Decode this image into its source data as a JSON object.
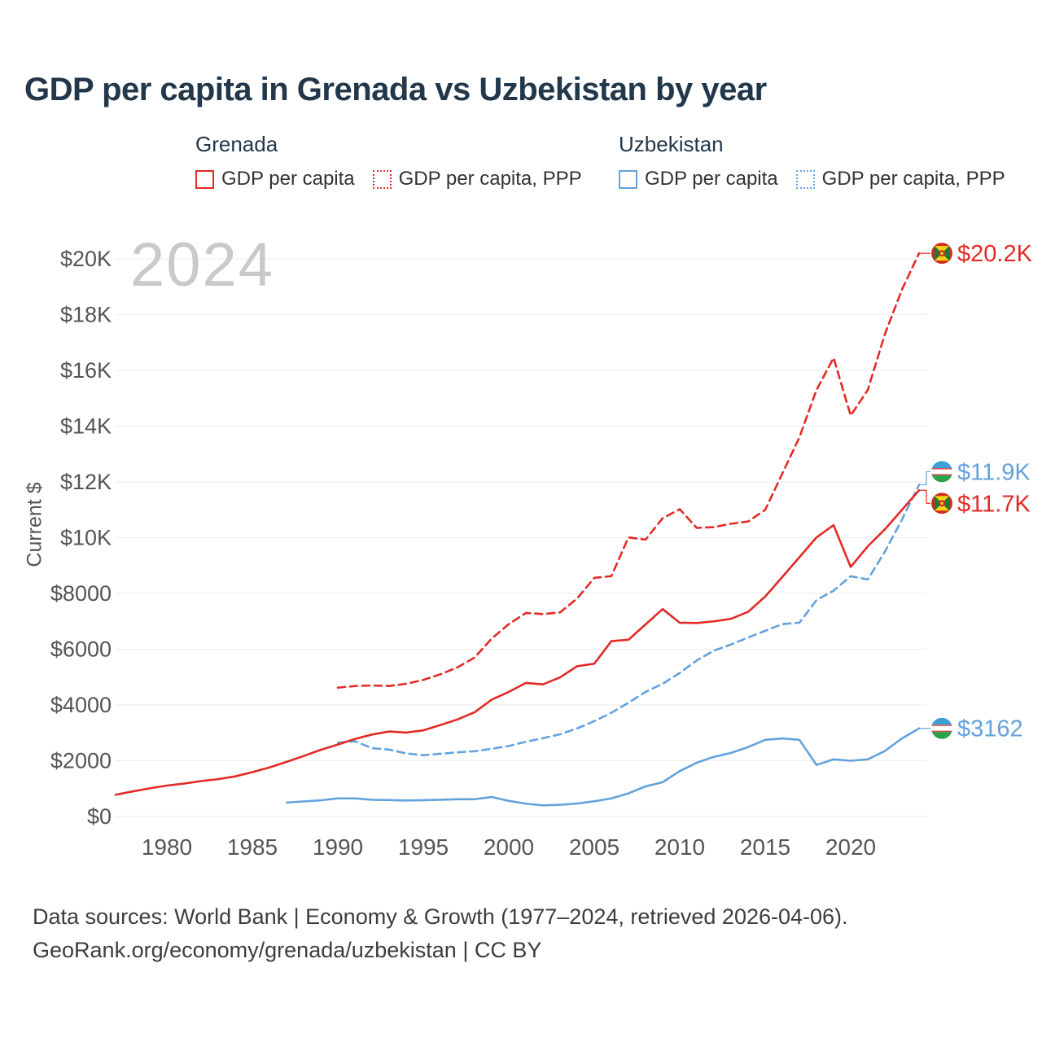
{
  "title": "GDP per capita in Grenada vs Uzbekistan by year",
  "watermark": "2024",
  "legend": {
    "groups": [
      {
        "name": "Grenada",
        "items": [
          {
            "label": "GDP per capita",
            "color": "#e22b26",
            "style": "solid"
          },
          {
            "label": "GDP per capita, PPP",
            "color": "#e22b26",
            "style": "dotted"
          }
        ]
      },
      {
        "name": "Uzbekistan",
        "items": [
          {
            "label": "GDP per capita",
            "color": "#64a2dd",
            "style": "solid"
          },
          {
            "label": "GDP per capita, PPP",
            "color": "#64a2dd",
            "style": "dotted"
          }
        ]
      }
    ]
  },
  "footer": {
    "line1": "Data sources: World Bank | Economy & Growth (1977–2024, retrieved 2026-04-06).",
    "line2": "GeoRank.org/economy/grenada/uzbekistan | CC BY"
  },
  "chart_data": {
    "type": "line",
    "title": "GDP per capita in Grenada vs Uzbekistan by year",
    "xlabel": "",
    "ylabel": "Current $",
    "xlim": [
      1977,
      2024
    ],
    "ylim": [
      0,
      20000
    ],
    "grid": true,
    "x_ticks": [
      1980,
      1985,
      1990,
      1995,
      2000,
      2005,
      2010,
      2015,
      2020
    ],
    "y_ticks": [
      {
        "value": 0,
        "label": "$0"
      },
      {
        "value": 2000,
        "label": "$2000"
      },
      {
        "value": 4000,
        "label": "$4000"
      },
      {
        "value": 6000,
        "label": "$6000"
      },
      {
        "value": 8000,
        "label": "$8000"
      },
      {
        "value": 10000,
        "label": "$10K"
      },
      {
        "value": 12000,
        "label": "$12K"
      },
      {
        "value": 14000,
        "label": "$14K"
      },
      {
        "value": 16000,
        "label": "$16K"
      },
      {
        "value": 18000,
        "label": "$18K"
      },
      {
        "value": 20000,
        "label": "$20K"
      }
    ],
    "series": [
      {
        "id": "uzbekistan-gdp-ppp",
        "name": "Uzbekistan GDP per capita, PPP",
        "country": "uzbekistan",
        "flag": "uzbekistan",
        "color": "#64a2dd",
        "dash": "dashed",
        "start_year": 1990,
        "values": [
          2650,
          2700,
          2450,
          2400,
          2260,
          2200,
          2250,
          2300,
          2340,
          2430,
          2530,
          2680,
          2810,
          2950,
          3160,
          3420,
          3720,
          4080,
          4470,
          4760,
          5150,
          5600,
          5950,
          6170,
          6420,
          6660,
          6900,
          6950,
          7760,
          8100,
          8620,
          8500,
          9500,
          10650,
          11900
        ],
        "end_label": "$11.9K",
        "label_offset_y": -16
      },
      {
        "id": "uzbekistan-gdp",
        "name": "Uzbekistan GDP per capita",
        "country": "uzbekistan",
        "flag": "uzbekistan",
        "color": "#64a2dd",
        "dash": "solid",
        "start_year": 1987,
        "values": [
          500,
          540,
          580,
          650,
          650,
          600,
          590,
          575,
          585,
          600,
          620,
          620,
          700,
          560,
          460,
          400,
          420,
          465,
          545,
          650,
          830,
          1080,
          1230,
          1630,
          1930,
          2140,
          2280,
          2490,
          2750,
          2800,
          2750,
          1850,
          2050,
          2000,
          2050,
          2350,
          2800,
          3162
        ],
        "end_label": "$3162",
        "label_offset_y": 0
      },
      {
        "id": "grenada-gdp-ppp",
        "name": "Grenada GDP per capita, PPP",
        "country": "grenada",
        "flag": "grenada",
        "color": "#e22b26",
        "dash": "dashed",
        "start_year": 1990,
        "values": [
          4620,
          4680,
          4700,
          4680,
          4760,
          4900,
          5100,
          5350,
          5700,
          6380,
          6900,
          7300,
          7260,
          7320,
          7820,
          8560,
          8620,
          10010,
          9930,
          10700,
          11020,
          10350,
          10380,
          10500,
          10580,
          11000,
          12300,
          13600,
          15300,
          16450,
          14380,
          15300,
          17300,
          18900,
          20200
        ],
        "end_label": "$20.2K",
        "label_offset_y": 0
      },
      {
        "id": "grenada-gdp",
        "name": "Grenada GDP per capita",
        "country": "grenada",
        "flag": "grenada",
        "color": "#e22b26",
        "dash": "solid",
        "start_year": 1977,
        "values": [
          780,
          900,
          1010,
          1110,
          1180,
          1270,
          1340,
          1440,
          1590,
          1760,
          1960,
          2170,
          2390,
          2580,
          2780,
          2940,
          3050,
          3010,
          3090,
          3280,
          3480,
          3740,
          4190,
          4470,
          4790,
          4740,
          4990,
          5390,
          5480,
          6290,
          6340,
          6890,
          7440,
          6950,
          6940,
          7000,
          7090,
          7340,
          7890,
          8590,
          9300,
          10010,
          10450,
          8950,
          9690,
          10300,
          11000,
          11700
        ],
        "end_label": "$11.7K",
        "label_offset_y": 16
      }
    ]
  }
}
